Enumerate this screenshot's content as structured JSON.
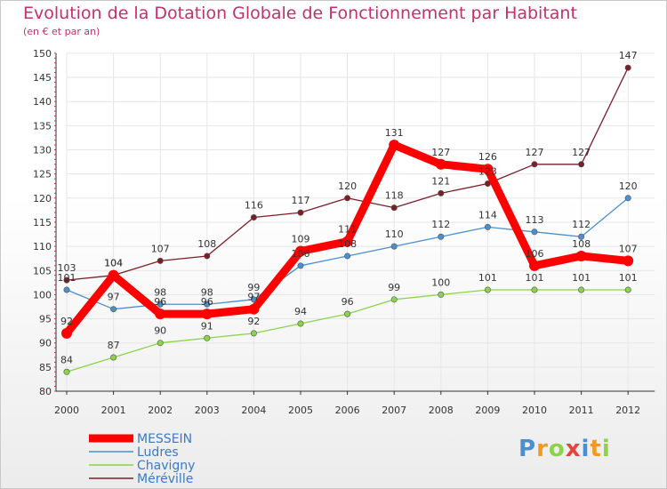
{
  "chart_data": {
    "type": "line",
    "title": "Evolution de la Dotation Globale de Fonctionnement par Habitant",
    "subtitle": "(en € et par an)",
    "categories": [
      "2000",
      "2001",
      "2002",
      "2003",
      "2004",
      "2005",
      "2006",
      "2007",
      "2008",
      "2009",
      "2010",
      "2011",
      "2012"
    ],
    "ylim": [
      80,
      150
    ],
    "yticks": [
      80,
      85,
      90,
      95,
      100,
      105,
      110,
      115,
      120,
      125,
      130,
      135,
      140,
      145,
      150
    ],
    "series": [
      {
        "name": "MESSEIN",
        "color": "#ff0000",
        "values": [
          92,
          104,
          96,
          96,
          97,
          109,
          111,
          131,
          127,
          126,
          106,
          108,
          107
        ]
      },
      {
        "name": "Ludres",
        "color": "#4a8fd0",
        "values": [
          101,
          97,
          98,
          98,
          99,
          106,
          108,
          110,
          112,
          114,
          113,
          112,
          120
        ]
      },
      {
        "name": "Chavigny",
        "color": "#8bd44a",
        "values": [
          84,
          87,
          90,
          91,
          92,
          94,
          96,
          99,
          100,
          101,
          101,
          101,
          101
        ]
      },
      {
        "name": "Méréville",
        "color": "#7a1f28",
        "values": [
          103,
          104,
          107,
          108,
          116,
          117,
          120,
          118,
          121,
          123,
          127,
          127,
          147
        ]
      }
    ],
    "legend_position": "bottom-left"
  },
  "logo": {
    "text": "Proxiti"
  }
}
